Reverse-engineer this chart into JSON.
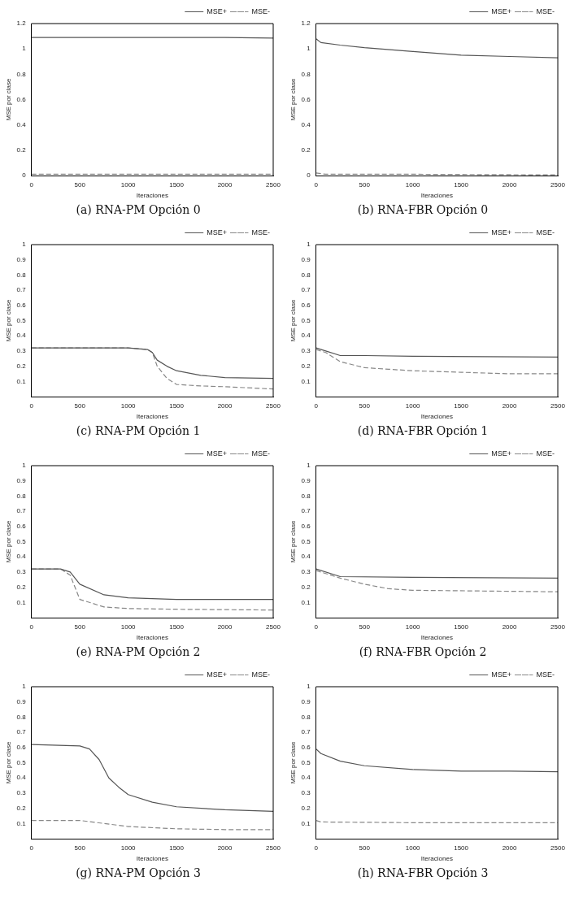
{
  "chart_data": [
    {
      "type": "line",
      "title": "(a) RNA-PM Opción 0",
      "xlabel": "Iteraciones",
      "ylabel": "MSE por clase",
      "xlim": [
        0,
        2500
      ],
      "xticks": [
        0,
        500,
        1000,
        1500,
        2000,
        2500
      ],
      "ylim": [
        0,
        1.2
      ],
      "yticks": [
        0,
        0.2,
        0.4,
        0.6,
        0.8,
        1,
        1.2
      ],
      "legend": "top right",
      "grid": false,
      "marker": "none",
      "series": [
        {
          "name": "MSE+",
          "color": "#555555",
          "line_style": "solid",
          "x": [
            0,
            500,
            1000,
            1500,
            2000,
            2500
          ],
          "values": [
            1.09,
            1.09,
            1.09,
            1.09,
            1.09,
            1.085
          ]
        },
        {
          "name": "MSE-",
          "color": "#888888",
          "line_style": "dashed",
          "x": [
            0,
            500,
            1000,
            1500,
            2000,
            2500
          ],
          "values": [
            0.01,
            0.01,
            0.01,
            0.01,
            0.01,
            0.01
          ]
        }
      ]
    },
    {
      "type": "line",
      "title": "(b) RNA-FBR Opción 0",
      "xlabel": "Iteraciones",
      "ylabel": "MSE por clase",
      "xlim": [
        0,
        2500
      ],
      "xticks": [
        0,
        500,
        1000,
        1500,
        2000,
        2500
      ],
      "ylim": [
        0,
        1.2
      ],
      "yticks": [
        0,
        0.2,
        0.4,
        0.6,
        0.8,
        1,
        1.2
      ],
      "legend": "top right",
      "grid": false,
      "marker": "none",
      "series": [
        {
          "name": "MSE+",
          "color": "#555555",
          "line_style": "solid",
          "x": [
            0,
            50,
            250,
            500,
            1000,
            1500,
            2000,
            2500
          ],
          "values": [
            1.08,
            1.05,
            1.03,
            1.01,
            0.98,
            0.95,
            0.94,
            0.93
          ]
        },
        {
          "name": "MSE-",
          "color": "#888888",
          "line_style": "dashed",
          "x": [
            0,
            100,
            1000,
            2500
          ],
          "values": [
            0.02,
            0.01,
            0.01,
            0.005
          ]
        }
      ]
    },
    {
      "type": "line",
      "title": "(c) RNA-PM Opción 1",
      "xlabel": "Iteraciones",
      "ylabel": "MSE por clase",
      "xlim": [
        0,
        2500
      ],
      "xticks": [
        0,
        500,
        1000,
        1500,
        2000,
        2500
      ],
      "ylim": [
        0,
        1
      ],
      "yticks": [
        0.1,
        0.2,
        0.3,
        0.4,
        0.5,
        0.6,
        0.7,
        0.8,
        0.9,
        1
      ],
      "legend": "top right",
      "grid": false,
      "marker": "none",
      "series": [
        {
          "name": "MSE+",
          "color": "#555555",
          "line_style": "solid",
          "x": [
            0,
            500,
            1000,
            1200,
            1250,
            1300,
            1400,
            1500,
            1750,
            2000,
            2500
          ],
          "values": [
            0.32,
            0.32,
            0.32,
            0.31,
            0.29,
            0.24,
            0.2,
            0.17,
            0.14,
            0.125,
            0.12
          ]
        },
        {
          "name": "MSE-",
          "color": "#888888",
          "line_style": "dashed",
          "x": [
            0,
            500,
            1000,
            1200,
            1250,
            1300,
            1400,
            1500,
            1750,
            2000,
            2500
          ],
          "values": [
            0.32,
            0.32,
            0.32,
            0.31,
            0.29,
            0.2,
            0.12,
            0.08,
            0.07,
            0.065,
            0.05
          ]
        }
      ]
    },
    {
      "type": "line",
      "title": "(d) RNA-FBR Opción 1",
      "xlabel": "Iteraciones",
      "ylabel": "MSE por clase",
      "xlim": [
        0,
        2500
      ],
      "xticks": [
        0,
        500,
        1000,
        1500,
        2000,
        2500
      ],
      "ylim": [
        0,
        1
      ],
      "yticks": [
        0.1,
        0.2,
        0.3,
        0.4,
        0.5,
        0.6,
        0.7,
        0.8,
        0.9,
        1
      ],
      "legend": "top right",
      "grid": false,
      "marker": "none",
      "series": [
        {
          "name": "MSE+",
          "color": "#555555",
          "line_style": "solid",
          "x": [
            0,
            100,
            250,
            500,
            1000,
            2500
          ],
          "values": [
            0.32,
            0.3,
            0.27,
            0.27,
            0.265,
            0.26
          ]
        },
        {
          "name": "MSE-",
          "color": "#888888",
          "line_style": "dashed",
          "x": [
            0,
            100,
            250,
            500,
            750,
            1000,
            1500,
            2000,
            2500
          ],
          "values": [
            0.31,
            0.29,
            0.23,
            0.19,
            0.18,
            0.17,
            0.16,
            0.15,
            0.15
          ]
        }
      ]
    },
    {
      "type": "line",
      "title": "(e) RNA-PM Opción 2",
      "xlabel": "Iteraciones",
      "ylabel": "MSE por clase",
      "xlim": [
        0,
        2500
      ],
      "xticks": [
        0,
        500,
        1000,
        1500,
        2000,
        2500
      ],
      "ylim": [
        0,
        1
      ],
      "yticks": [
        0.1,
        0.2,
        0.3,
        0.4,
        0.5,
        0.6,
        0.7,
        0.8,
        0.9,
        1
      ],
      "legend": "top right",
      "grid": false,
      "marker": "none",
      "series": [
        {
          "name": "MSE+",
          "color": "#555555",
          "line_style": "solid",
          "x": [
            0,
            300,
            400,
            500,
            750,
            1000,
            1500,
            2500
          ],
          "values": [
            0.32,
            0.32,
            0.3,
            0.22,
            0.15,
            0.13,
            0.12,
            0.12
          ]
        },
        {
          "name": "MSE-",
          "color": "#888888",
          "line_style": "dashed",
          "x": [
            0,
            300,
            400,
            500,
            750,
            1000,
            1500,
            2500
          ],
          "values": [
            0.32,
            0.32,
            0.28,
            0.12,
            0.07,
            0.06,
            0.055,
            0.05
          ]
        }
      ]
    },
    {
      "type": "line",
      "title": "(f) RNA-FBR Opción 2",
      "xlabel": "Iteraciones",
      "ylabel": "MSE por clase",
      "xlim": [
        0,
        2500
      ],
      "xticks": [
        0,
        500,
        1000,
        1500,
        2000,
        2500
      ],
      "ylim": [
        0,
        1
      ],
      "yticks": [
        0.1,
        0.2,
        0.3,
        0.4,
        0.5,
        0.6,
        0.7,
        0.8,
        0.9,
        1
      ],
      "legend": "top right",
      "grid": false,
      "marker": "none",
      "series": [
        {
          "name": "MSE+",
          "color": "#555555",
          "line_style": "solid",
          "x": [
            0,
            250,
            1000,
            2500
          ],
          "values": [
            0.32,
            0.27,
            0.265,
            0.26
          ]
        },
        {
          "name": "MSE-",
          "color": "#888888",
          "line_style": "dashed",
          "x": [
            0,
            250,
            500,
            750,
            1000,
            2500
          ],
          "values": [
            0.31,
            0.26,
            0.22,
            0.19,
            0.18,
            0.17
          ]
        }
      ]
    },
    {
      "type": "line",
      "title": "(g) RNA-PM Opción 3",
      "xlabel": "Iteraciones",
      "ylabel": "MSE por clase",
      "xlim": [
        0,
        2500
      ],
      "xticks": [
        0,
        500,
        1000,
        1500,
        2000,
        2500
      ],
      "ylim": [
        0,
        1
      ],
      "yticks": [
        0.1,
        0.2,
        0.3,
        0.4,
        0.5,
        0.6,
        0.7,
        0.8,
        0.9,
        1
      ],
      "legend": "top right",
      "grid": false,
      "marker": "none",
      "series": [
        {
          "name": "MSE+",
          "color": "#555555",
          "line_style": "solid",
          "x": [
            0,
            500,
            600,
            700,
            800,
            900,
            1000,
            1250,
            1500,
            2000,
            2500
          ],
          "values": [
            0.62,
            0.61,
            0.59,
            0.52,
            0.4,
            0.34,
            0.29,
            0.24,
            0.21,
            0.19,
            0.18
          ]
        },
        {
          "name": "MSE-",
          "color": "#888888",
          "line_style": "dashed",
          "x": [
            0,
            500,
            750,
            1000,
            1500,
            2000,
            2500
          ],
          "values": [
            0.12,
            0.12,
            0.1,
            0.08,
            0.065,
            0.06,
            0.06
          ]
        }
      ]
    },
    {
      "type": "line",
      "title": "(h) RNA-FBR Opción 3",
      "xlabel": "Iteraciones",
      "ylabel": "MSE por clase",
      "xlim": [
        0,
        2500
      ],
      "xticks": [
        0,
        500,
        1000,
        1500,
        2000,
        2500
      ],
      "ylim": [
        0,
        1
      ],
      "yticks": [
        0.1,
        0.2,
        0.3,
        0.4,
        0.5,
        0.6,
        0.7,
        0.8,
        0.9,
        1
      ],
      "legend": "top right",
      "grid": false,
      "marker": "none",
      "series": [
        {
          "name": "MSE+",
          "color": "#555555",
          "line_style": "solid",
          "x": [
            0,
            50,
            250,
            500,
            1000,
            1500,
            2000,
            2500
          ],
          "values": [
            0.59,
            0.56,
            0.51,
            0.48,
            0.455,
            0.445,
            0.445,
            0.44
          ]
        },
        {
          "name": "MSE-",
          "color": "#888888",
          "line_style": "dashed",
          "x": [
            0,
            50,
            1000,
            2500
          ],
          "values": [
            0.12,
            0.11,
            0.105,
            0.105
          ]
        }
      ]
    }
  ]
}
